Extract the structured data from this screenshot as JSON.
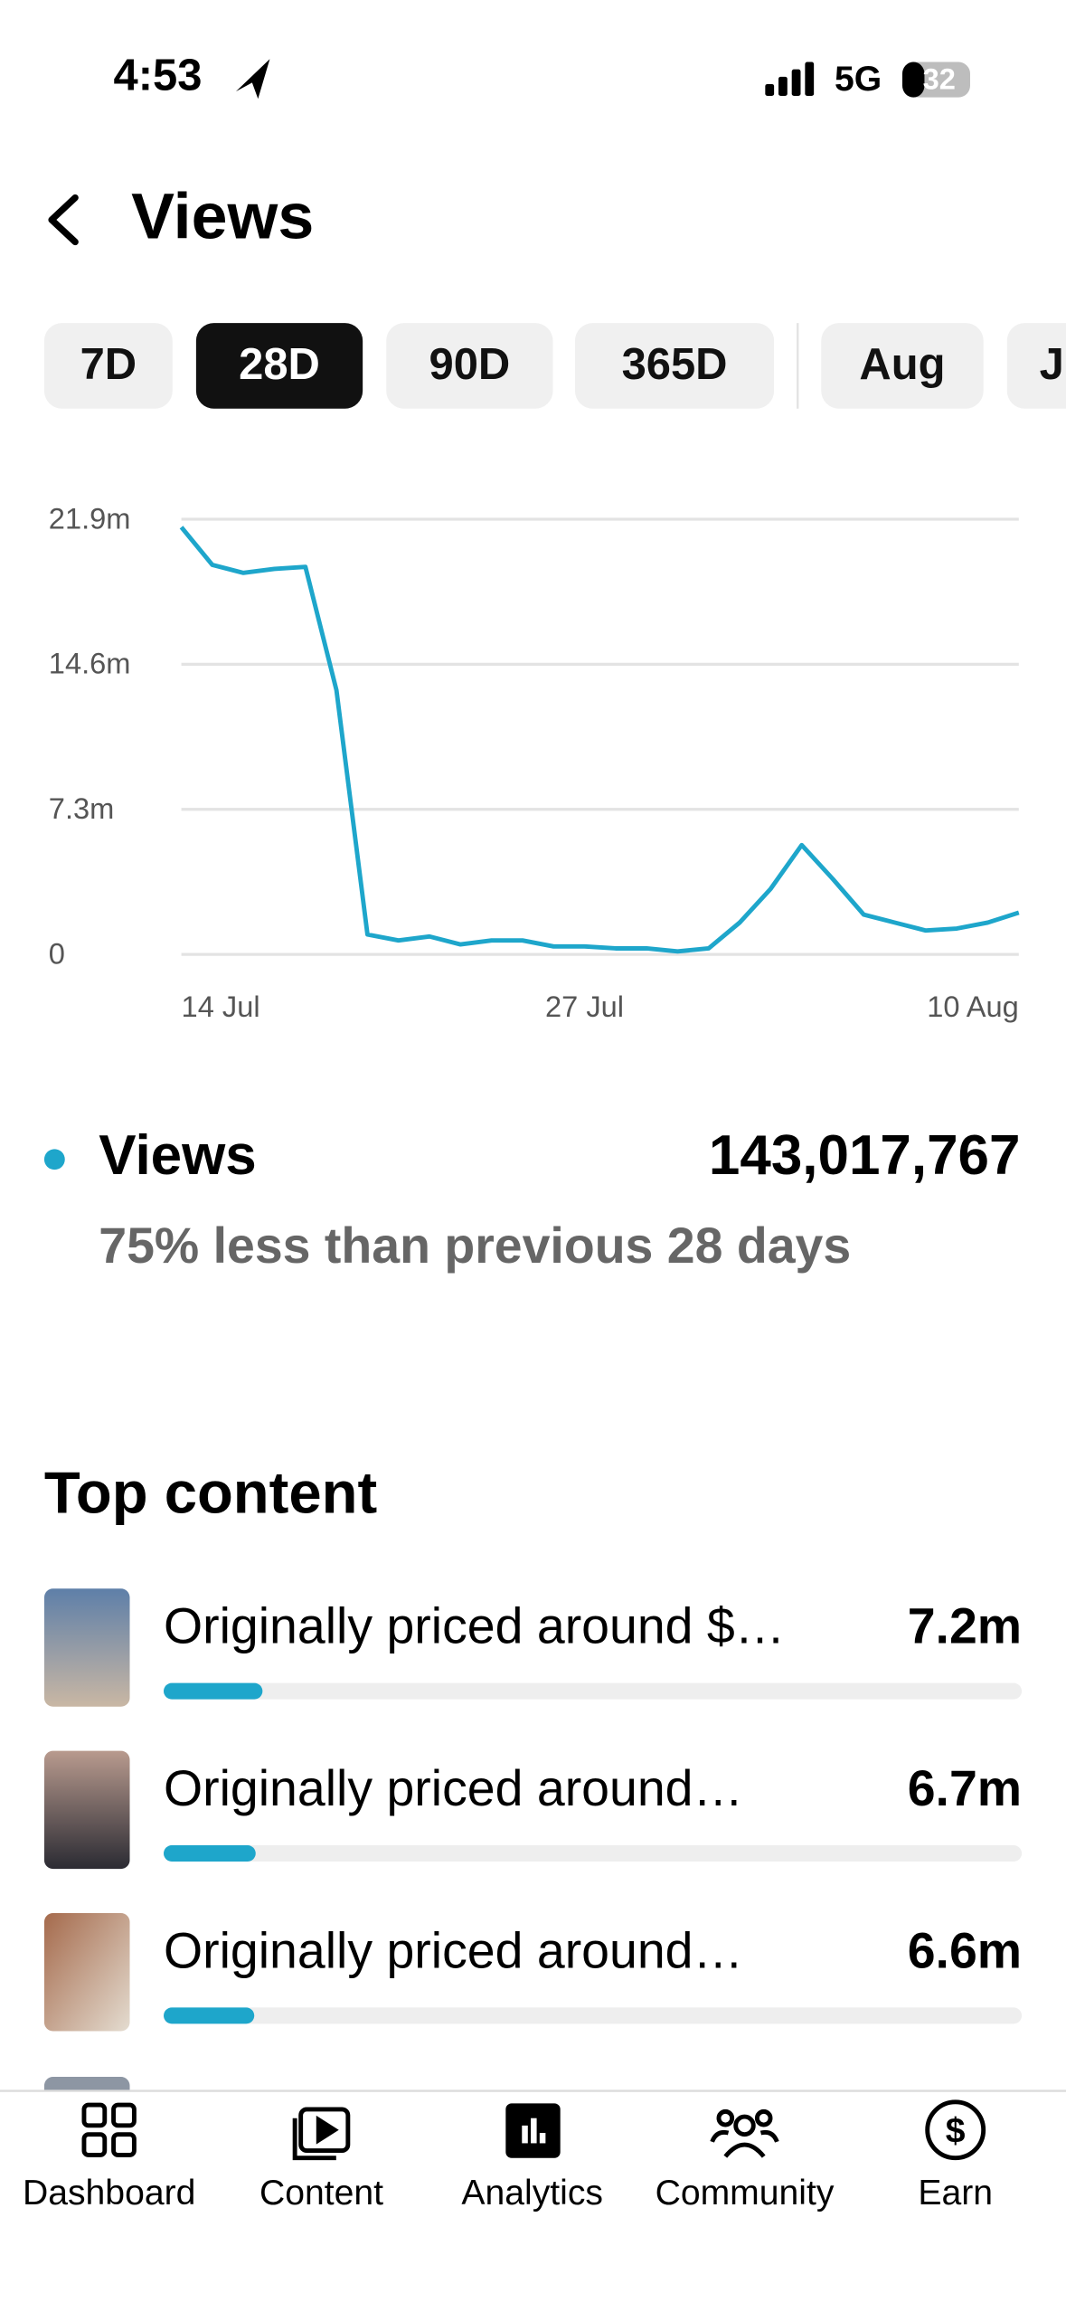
{
  "status_bar": {
    "time": "4:53",
    "network": "5G",
    "battery": "32"
  },
  "header": {
    "title": "Views"
  },
  "tabs": [
    {
      "label": "7D"
    },
    {
      "label": "28D",
      "active": true
    },
    {
      "label": "90D"
    },
    {
      "label": "365D"
    },
    {
      "label": "Aug"
    },
    {
      "label": "J"
    }
  ],
  "chart_data": {
    "type": "line",
    "color": "#1ea6cb",
    "grid": true,
    "categories": [
      "14 Jul",
      null,
      null,
      null,
      null,
      null,
      null,
      null,
      null,
      null,
      null,
      null,
      null,
      "27 Jul",
      null,
      null,
      null,
      null,
      null,
      null,
      null,
      null,
      null,
      null,
      null,
      null,
      null,
      "10 Aug"
    ],
    "values": [
      21500000,
      19600000,
      19200000,
      19400000,
      19500000,
      13300000,
      1000000,
      700000,
      900000,
      500000,
      700000,
      700000,
      400000,
      400000,
      300000,
      300000,
      150000,
      300000,
      1600000,
      3300000,
      5500000,
      3800000,
      2000000,
      1600000,
      1200000,
      1300000,
      1600000,
      2100000
    ],
    "ylim": [
      0,
      21900000
    ],
    "yticks": [
      0,
      {
        "value": 7300000,
        "label": "7.3m"
      },
      {
        "value": 14600000,
        "label": "14.6m"
      },
      {
        "value": 21900000,
        "label": "21.9m"
      }
    ]
  },
  "summary": {
    "label": "Views",
    "total": "143,017,767",
    "comparison": "75% less than previous 28 days"
  },
  "top_content": {
    "title": "Top content",
    "xlim": [
      0,
      62500000
    ],
    "items": [
      {
        "title": "Originally priced around $…",
        "value": 7200000,
        "value_label": "7.2m"
      },
      {
        "title": "Originally priced around…",
        "value": 6700000,
        "value_label": "6.7m"
      },
      {
        "title": "Originally priced around…",
        "value": 6600000,
        "value_label": "6.6m"
      }
    ]
  },
  "nav": [
    {
      "label": "Dashboard"
    },
    {
      "label": "Content"
    },
    {
      "label": "Analytics"
    },
    {
      "label": "Community"
    },
    {
      "label": "Earn"
    }
  ]
}
